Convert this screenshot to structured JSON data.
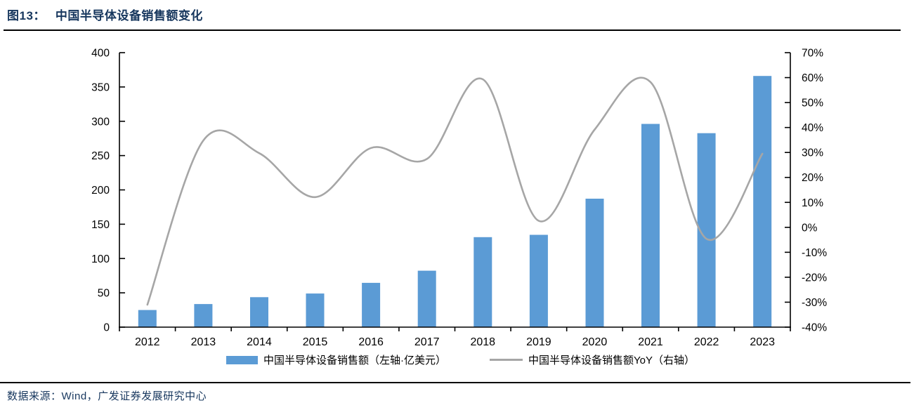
{
  "figure": {
    "title_prefix": "图13：",
    "title": "中国半导体设备销售额变化",
    "source": "数据来源：Wind，广发证券发展研究中心"
  },
  "chart_data": {
    "type": "bar",
    "subtype": "bar+smooth-line, dual axis",
    "categories": [
      "2012",
      "2013",
      "2014",
      "2015",
      "2016",
      "2017",
      "2018",
      "2019",
      "2020",
      "2021",
      "2022",
      "2023"
    ],
    "series": [
      {
        "name": "中国半导体设备销售额（左轴·亿美元）",
        "type": "bar",
        "axis": "left",
        "color": "#5B9BD5",
        "values": [
          25.0,
          33.7,
          43.7,
          49.0,
          64.6,
          82.3,
          131.1,
          134.5,
          187.2,
          296.2,
          282.7,
          366.0
        ]
      },
      {
        "name": "中国半导体设备销售额YoY（右轴）",
        "type": "line",
        "axis": "right",
        "color": "#A6A6A6",
        "smooth": true,
        "values_pct": [
          -31.0,
          34.8,
          29.7,
          12.1,
          31.8,
          27.4,
          59.3,
          2.6,
          39.2,
          58.2,
          -4.6,
          29.5
        ]
      }
    ],
    "left_axis": {
      "min": 0,
      "max": 400,
      "step": 50,
      "tick_labels": [
        "0",
        "50",
        "100",
        "150",
        "200",
        "250",
        "300",
        "350",
        "400"
      ]
    },
    "right_axis": {
      "min": -40,
      "max": 70,
      "step": 10,
      "tick_labels": [
        "-40%",
        "-30%",
        "-20%",
        "-10%",
        "0%",
        "10%",
        "20%",
        "30%",
        "40%",
        "50%",
        "60%",
        "70%"
      ],
      "format": "percent"
    },
    "grid": false,
    "legend_position": "bottom",
    "colors": {
      "axis": "#000000",
      "title_text": "#17375E",
      "rule": "#000000"
    }
  }
}
